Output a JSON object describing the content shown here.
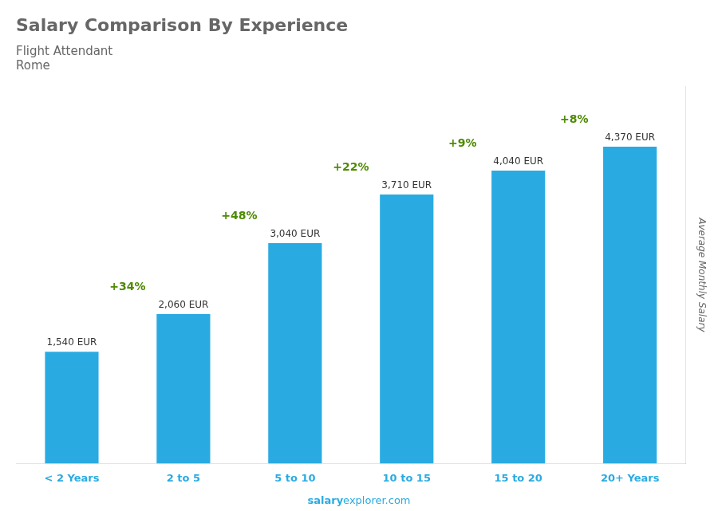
{
  "chart_data": {
    "type": "bar",
    "title": "Salary Comparison By Experience",
    "subtitle": [
      "Flight Attendant",
      "Rome"
    ],
    "categories": [
      "< 2 Years",
      "2 to 5",
      "5 to 10",
      "10 to 15",
      "15 to 20",
      "20+ Years"
    ],
    "values": [
      1540,
      2060,
      3040,
      3710,
      4040,
      4370
    ],
    "value_labels": [
      "1,540 EUR",
      "2,060 EUR",
      "3,040 EUR",
      "3,710 EUR",
      "4,040 EUR",
      "4,370 EUR"
    ],
    "data_labels": true,
    "annotations": [
      "+34%",
      "+48%",
      "+22%",
      "+9%",
      "+8%"
    ],
    "ylabel": "Average Monthly Salary",
    "watermark": [
      "salary",
      "explorer.com"
    ],
    "color": "#29ABE2",
    "ylim": [
      0,
      5200
    ],
    "tick_labels": "x",
    "grid": false
  }
}
